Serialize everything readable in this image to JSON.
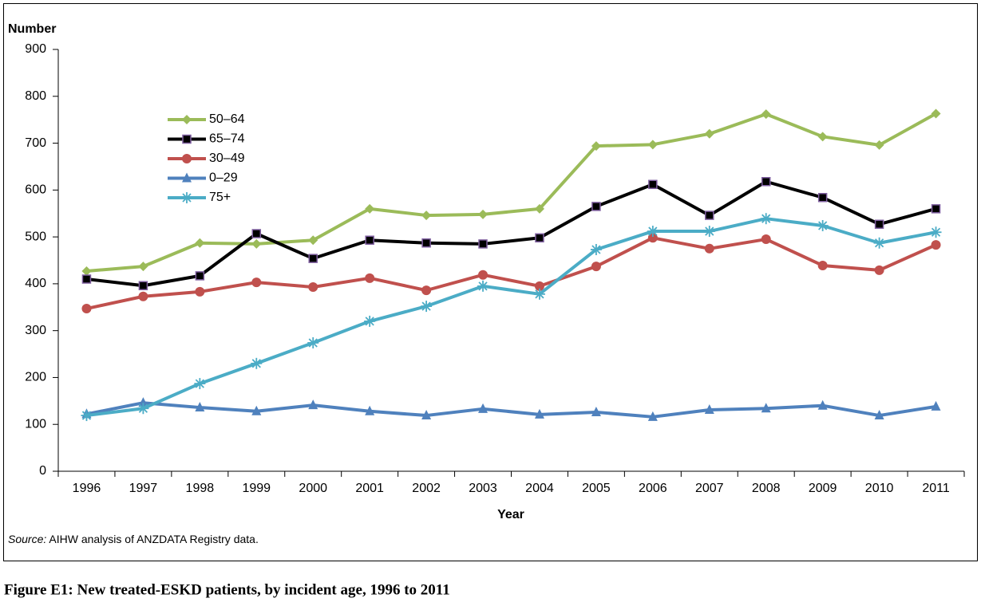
{
  "chart_data": {
    "type": "line",
    "y_label": "Number",
    "x_label": "Year",
    "source_label": "Source:",
    "source": "AIHW analysis of ANZDATA Registry data.",
    "caption": "Figure E1: New treated-ESKD patients, by incident age, 1996 to 2011",
    "categories": [
      "1996",
      "1997",
      "1998",
      "1999",
      "2000",
      "2001",
      "2002",
      "2003",
      "2004",
      "2005",
      "2006",
      "2007",
      "2008",
      "2009",
      "2010",
      "2011"
    ],
    "ylim": [
      0,
      900
    ],
    "yticks": [
      0,
      100,
      200,
      300,
      400,
      500,
      600,
      700,
      800,
      900
    ],
    "grid": false,
    "series": [
      {
        "name": "50–64",
        "color": "#9bbb59",
        "marker": "diamond",
        "values": [
          427,
          437,
          487,
          485,
          493,
          560,
          546,
          548,
          560,
          694,
          697,
          720,
          762,
          714,
          696,
          763
        ]
      },
      {
        "name": "65–74",
        "color": "#000000",
        "marker": "square",
        "values": [
          410,
          396,
          417,
          507,
          454,
          493,
          487,
          485,
          498,
          565,
          612,
          546,
          618,
          584,
          527,
          560
        ]
      },
      {
        "name": "30–49",
        "color": "#c0504d",
        "marker": "circle",
        "values": [
          347,
          373,
          383,
          403,
          393,
          412,
          386,
          419,
          395,
          437,
          498,
          475,
          495,
          439,
          429,
          483
        ]
      },
      {
        "name": "0–29",
        "color": "#4f81bd",
        "marker": "triangle",
        "values": [
          122,
          146,
          136,
          128,
          141,
          128,
          119,
          133,
          121,
          126,
          116,
          131,
          134,
          140,
          119,
          138
        ]
      },
      {
        "name": "75+",
        "color": "#4bacc6",
        "marker": "star",
        "values": [
          119,
          134,
          187,
          230,
          274,
          320,
          352,
          395,
          378,
          473,
          512,
          512,
          539,
          524,
          487,
          510
        ]
      }
    ]
  }
}
